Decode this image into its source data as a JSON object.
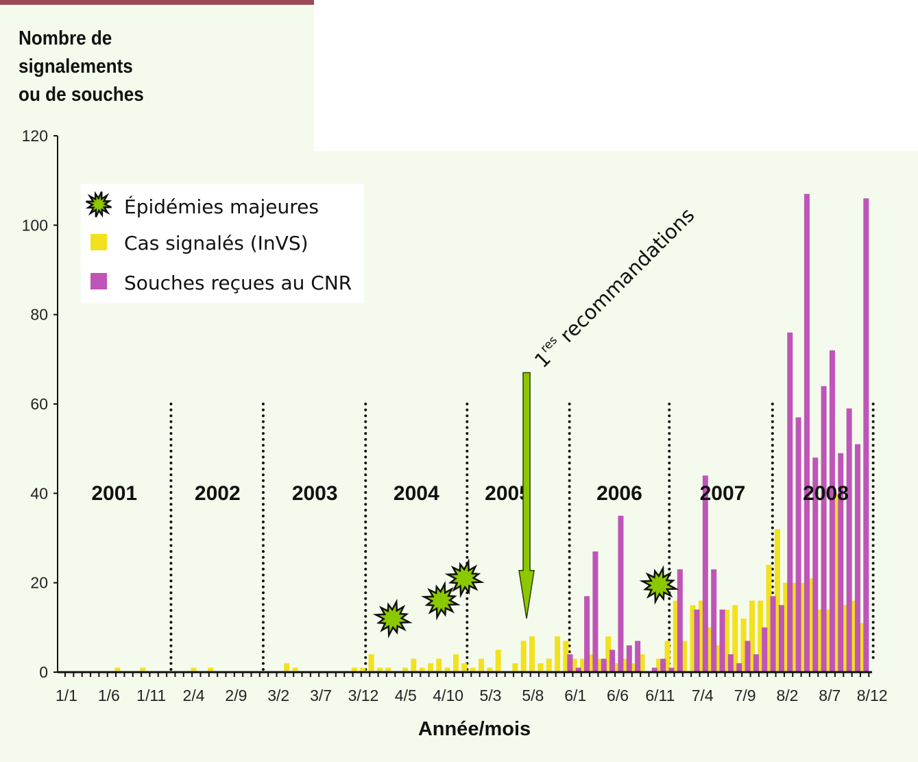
{
  "chart_data": {
    "type": "bar",
    "title": "",
    "ylabel_lines": [
      "Nombre de",
      "signalements",
      "ou de souches"
    ],
    "xlabel": "Année/mois",
    "ylim": [
      0,
      120
    ],
    "yticks": [
      0,
      20,
      40,
      60,
      80,
      100,
      120
    ],
    "xtick_labels": [
      "1/1",
      "1/6",
      "1/11",
      "2/4",
      "2/9",
      "3/2",
      "3/7",
      "3/12",
      "4/5",
      "4/10",
      "5/3",
      "5/8",
      "6/1",
      "6/6",
      "6/11",
      "7/4",
      "7/9",
      "8/2",
      "8/7",
      "8/12"
    ],
    "xtick_every_months": 5,
    "months_count": 96,
    "years": [
      {
        "label": "2001",
        "center_month": 6.3
      },
      {
        "label": "2002",
        "center_month": 18.5
      },
      {
        "label": "2003",
        "center_month": 30
      },
      {
        "label": "2004",
        "center_month": 42
      },
      {
        "label": "2005",
        "center_month": 52.8
      },
      {
        "label": "2006",
        "center_month": 66
      },
      {
        "label": "2007",
        "center_month": 78.2
      },
      {
        "label": "2008",
        "center_month": 90.4
      }
    ],
    "year_separators_month": [
      13,
      23.9,
      36,
      48,
      60.1,
      71.9,
      84.1,
      96
    ],
    "series": [
      {
        "name": "Cas signalés (InVS)",
        "color": "#f2e11f",
        "values": [
          0,
          0,
          0,
          0,
          0,
          0,
          0,
          1,
          0,
          0,
          1,
          0,
          0,
          0,
          0,
          0,
          1,
          0,
          1,
          0,
          0,
          0,
          0,
          0,
          0,
          0,
          0,
          2,
          1,
          0,
          0,
          0,
          0,
          0,
          0,
          1,
          1,
          4,
          1,
          1,
          0,
          1,
          3,
          1,
          2,
          3,
          1,
          4,
          2,
          1,
          3,
          1,
          5,
          0,
          2,
          7,
          8,
          2,
          3,
          8,
          7,
          3,
          3,
          4,
          3,
          8,
          2,
          3,
          2,
          4,
          0,
          3,
          7,
          16,
          7,
          15,
          16,
          10,
          6,
          14,
          15,
          12,
          16,
          16,
          24,
          32,
          20,
          20,
          20,
          21,
          14,
          14,
          40,
          15,
          16,
          11
        ]
      },
      {
        "name": "Souches reçues au CNR",
        "color": "#bf55b8",
        "values": [
          0,
          0,
          0,
          0,
          0,
          0,
          0,
          0,
          0,
          0,
          0,
          0,
          0,
          0,
          0,
          0,
          0,
          0,
          0,
          0,
          0,
          0,
          0,
          0,
          0,
          0,
          0,
          0,
          0,
          0,
          0,
          0,
          0,
          0,
          0,
          0,
          0,
          0,
          0,
          0,
          0,
          0,
          0,
          0,
          0,
          0,
          0,
          0,
          0,
          0,
          0,
          0,
          0,
          0,
          0,
          0,
          0,
          0,
          0,
          0,
          4,
          1,
          17,
          27,
          3,
          5,
          35,
          6,
          7,
          0,
          1,
          3,
          1,
          23,
          0,
          14,
          44,
          23,
          14,
          4,
          2,
          7,
          4,
          10,
          17,
          15,
          76,
          57,
          107,
          48,
          64,
          72,
          49,
          59,
          51,
          106
        ]
      }
    ],
    "epidemics": {
      "name": "Épidémies majeures",
      "color": "#8cc800",
      "points": [
        {
          "month": 39.2,
          "value": 12
        },
        {
          "month": 44.9,
          "value": 16
        },
        {
          "month": 47.7,
          "value": 21
        },
        {
          "month": 70.7,
          "value": 19.5
        }
      ]
    },
    "annotation": {
      "sup": "res",
      "main": "1",
      "text": "recommandations",
      "month": 56,
      "from_value": 67,
      "to_value": 12
    },
    "legend_position": "top-left"
  }
}
